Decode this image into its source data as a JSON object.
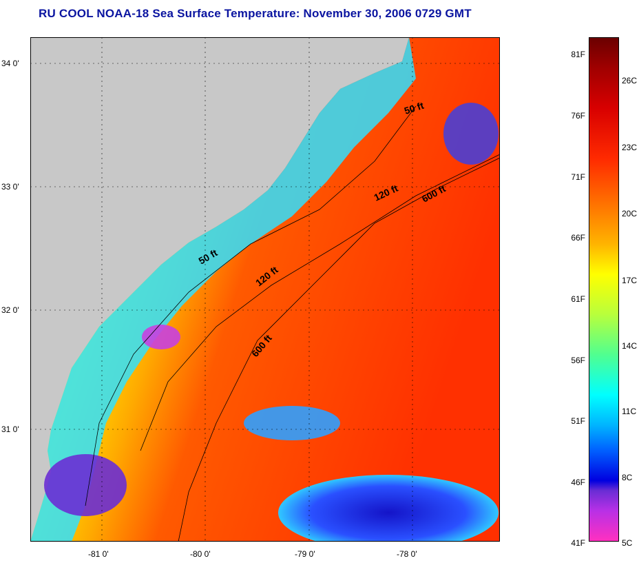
{
  "title": "RU COOL  NOAA-18  Sea Surface Temperature:  November 30, 2006 0729 GMT",
  "map": {
    "lat_labels": [
      "34 0'",
      "33 0'",
      "32 0'",
      "31 0'"
    ],
    "lon_labels": [
      "-81 0'",
      "-80 0'",
      "-79 0'",
      "-78 0'"
    ],
    "contours": [
      "50 ft",
      "120 ft",
      "600 ft",
      "50 ft",
      "120 ft",
      "600 ft"
    ],
    "colors": {
      "land": "#c8c8c8",
      "warm": "#ff3a00",
      "cool": "#00e0ff",
      "cold": "#1e28ff"
    }
  },
  "colorbar": {
    "fahrenheit": [
      "81F",
      "76F",
      "71F",
      "66F",
      "61F",
      "56F",
      "51F",
      "46F",
      "41F"
    ],
    "celsius": [
      "26C",
      "23C",
      "20C",
      "17C",
      "14C",
      "11C",
      "8C",
      "5C"
    ]
  }
}
